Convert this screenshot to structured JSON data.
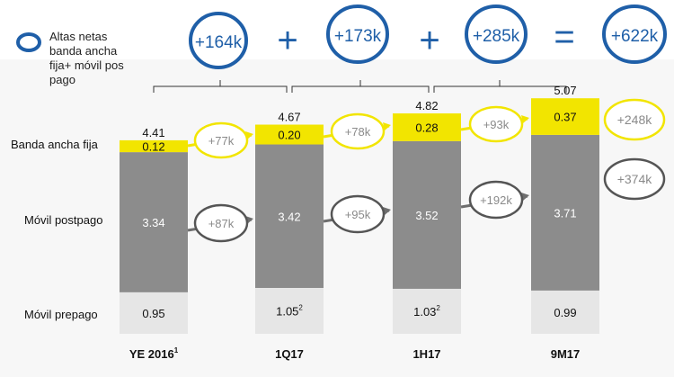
{
  "chart_data": {
    "type": "bar",
    "stacked": true,
    "categories": [
      "YE 2016",
      "1Q17",
      "1H17",
      "9M17"
    ],
    "category_superscripts": [
      "1",
      "",
      "",
      ""
    ],
    "totals": [
      "4.41",
      "4.67",
      "4.82",
      "5.07"
    ],
    "series": [
      {
        "name": "Móvil prepago",
        "values": [
          0.95,
          1.05,
          1.03,
          0.99
        ],
        "labels": [
          "0.95",
          "1.05",
          "1.03",
          "0.99"
        ],
        "superscripts": [
          "",
          "2",
          "2",
          ""
        ],
        "color": "#e6e6e6"
      },
      {
        "name": "Móvil postpago",
        "values": [
          3.34,
          3.42,
          3.52,
          3.71
        ],
        "labels": [
          "3.34",
          "3.42",
          "3.52",
          "3.71"
        ],
        "color": "#8c8c8c"
      },
      {
        "name": "Banda ancha fija",
        "values": [
          0.12,
          0.2,
          0.28,
          0.37
        ],
        "labels": [
          "0.12",
          "0.20",
          "0.28",
          "0.37"
        ],
        "color": "#f2e500"
      }
    ],
    "legend": {
      "label": "Altas netas banda ancha fija+ móvil postpago"
    },
    "summary": {
      "values": [
        "+164k",
        "+173k",
        "+285k",
        "+622k"
      ],
      "operators": [
        "+",
        "+",
        "="
      ],
      "color": "#1f5fa8"
    },
    "fixed_adds": [
      "+77k",
      "+78k",
      "+93k"
    ],
    "fixed_total": "+248k",
    "postpaid_adds": [
      "+87k",
      "+95k",
      "+192k"
    ],
    "postpaid_total": "+374k",
    "colors": {
      "fixed": "#f2e500",
      "postpaid": "#8c8c8c",
      "prepaid": "#e6e6e6",
      "accent": "#1f5fa8",
      "arrow": "#6e6e6e"
    }
  }
}
